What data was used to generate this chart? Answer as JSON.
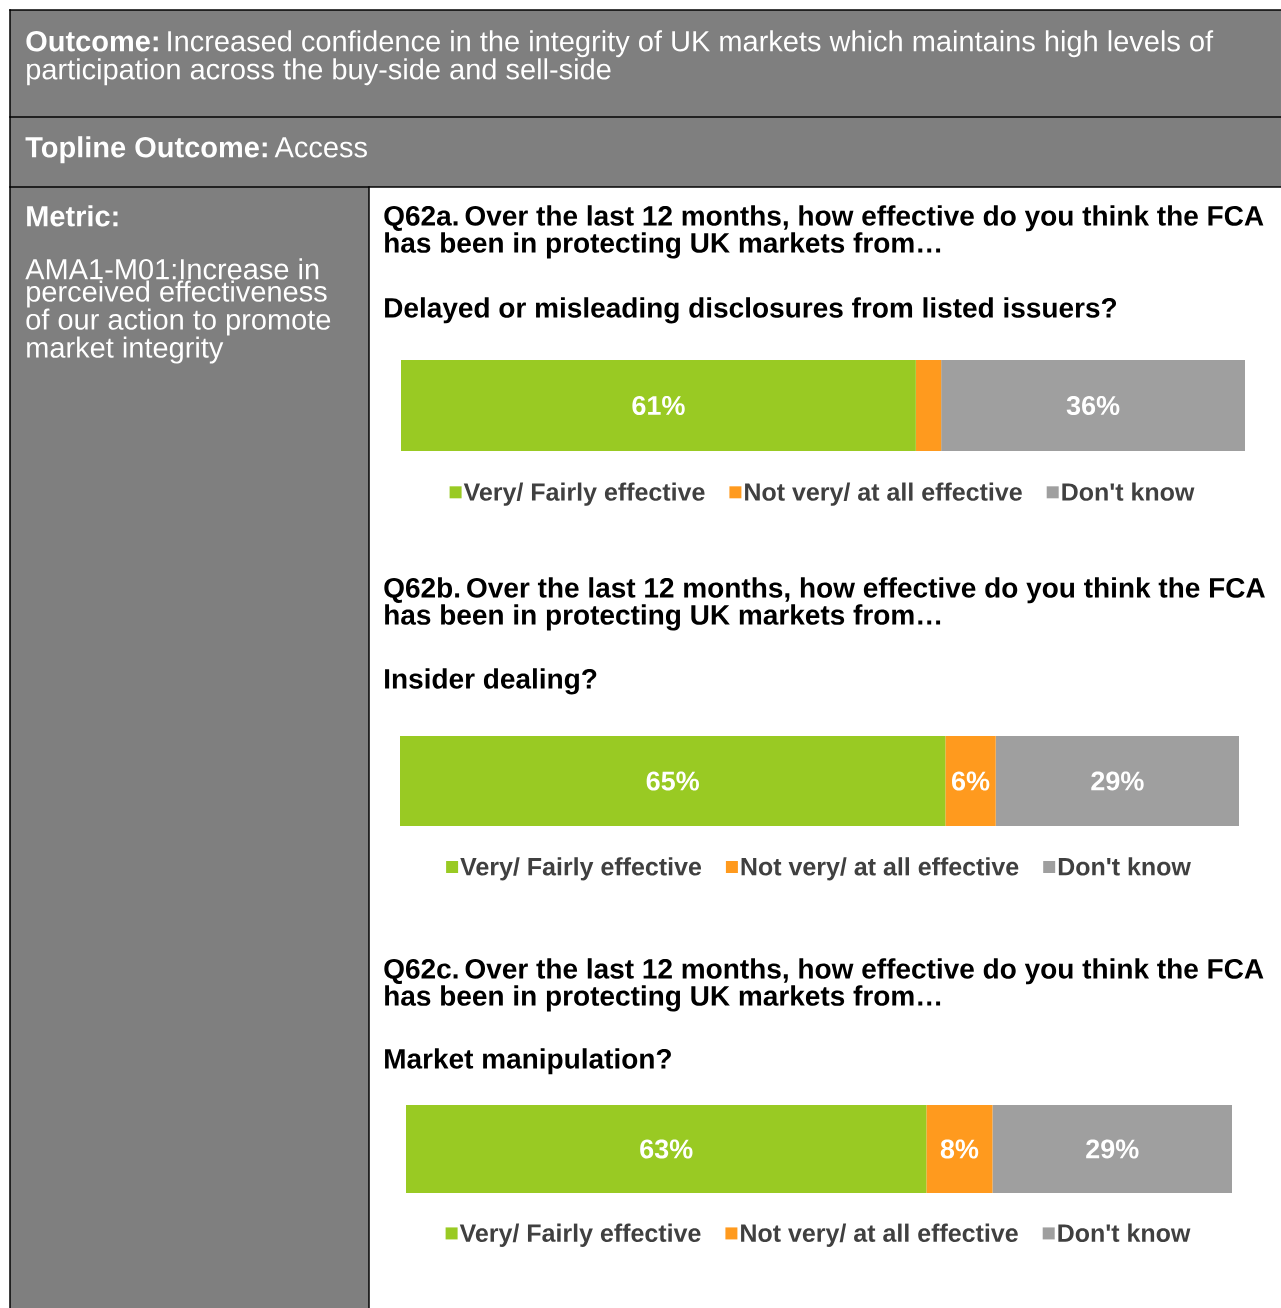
{
  "chart_data": [
    {
      "type": "bar",
      "orientation": "horizontal",
      "stacked": true,
      "legend": "bottom",
      "title": "Q62a. Over the last 12 months, how effective do you think the FCA has been in protecting UK markets from…",
      "subtitle": "Delayed or misleading disclosures from listed issuers?",
      "annotations": [
        "**Outcome:** Increased confidence in the integrity of UK markets which maintains high levels of participation across the buy-side and sell-side",
        "**Topline Outcome:** Access",
        "Metric:",
        "AMA1-M01:Increase in perceived effectiveness of our action to promote market integrity"
      ],
      "categories": [
        null
      ],
      "series": [
        {
          "name": "Very/ Fairly effective",
          "color": "#99ca23",
          "values": [
            61
          ],
          "value_labels": [
            "61%"
          ]
        },
        {
          "name": "Not very/ at all effective",
          "color": "#ff9a1e",
          "values": [
            3
          ],
          "value_labels": [
            null
          ]
        },
        {
          "name": "Don't know",
          "color": "#9f9f9f",
          "values": [
            36
          ],
          "value_labels": [
            "36%"
          ]
        }
      ]
    },
    {
      "type": "bar",
      "orientation": "horizontal",
      "stacked": true,
      "legend": "bottom",
      "title": "Q62b. Over the last 12 months, how effective do you think the FCA has been in protecting UK markets from…",
      "subtitle": "Insider dealing?",
      "categories": [
        null
      ],
      "series": [
        {
          "name": "Very/ Fairly effective",
          "color": "#99ca23",
          "values": [
            65
          ],
          "value_labels": [
            "65%"
          ]
        },
        {
          "name": "Not very/ at all effective",
          "color": "#ff9a1e",
          "values": [
            6
          ],
          "value_labels": [
            "6%"
          ]
        },
        {
          "name": "Don't know",
          "color": "#9f9f9f",
          "values": [
            29
          ],
          "value_labels": [
            "29%"
          ]
        }
      ]
    },
    {
      "type": "bar",
      "orientation": "horizontal",
      "stacked": true,
      "legend": "bottom",
      "title": "Q62c. Over the last 12 months, how effective do you think the FCA has been in protecting UK markets from…",
      "subtitle": "Market manipulation?",
      "categories": [
        null
      ],
      "series": [
        {
          "name": "Very/ Fairly effective",
          "color": "#99ca23",
          "values": [
            63
          ],
          "value_labels": [
            "63%"
          ]
        },
        {
          "name": "Not very/ at all effective",
          "color": "#ff9a1e",
          "values": [
            8
          ],
          "value_labels": [
            "8%"
          ]
        },
        {
          "name": "Don't know",
          "color": "#9f9f9f",
          "values": [
            29
          ],
          "value_labels": [
            "29%"
          ]
        }
      ]
    }
  ]
}
